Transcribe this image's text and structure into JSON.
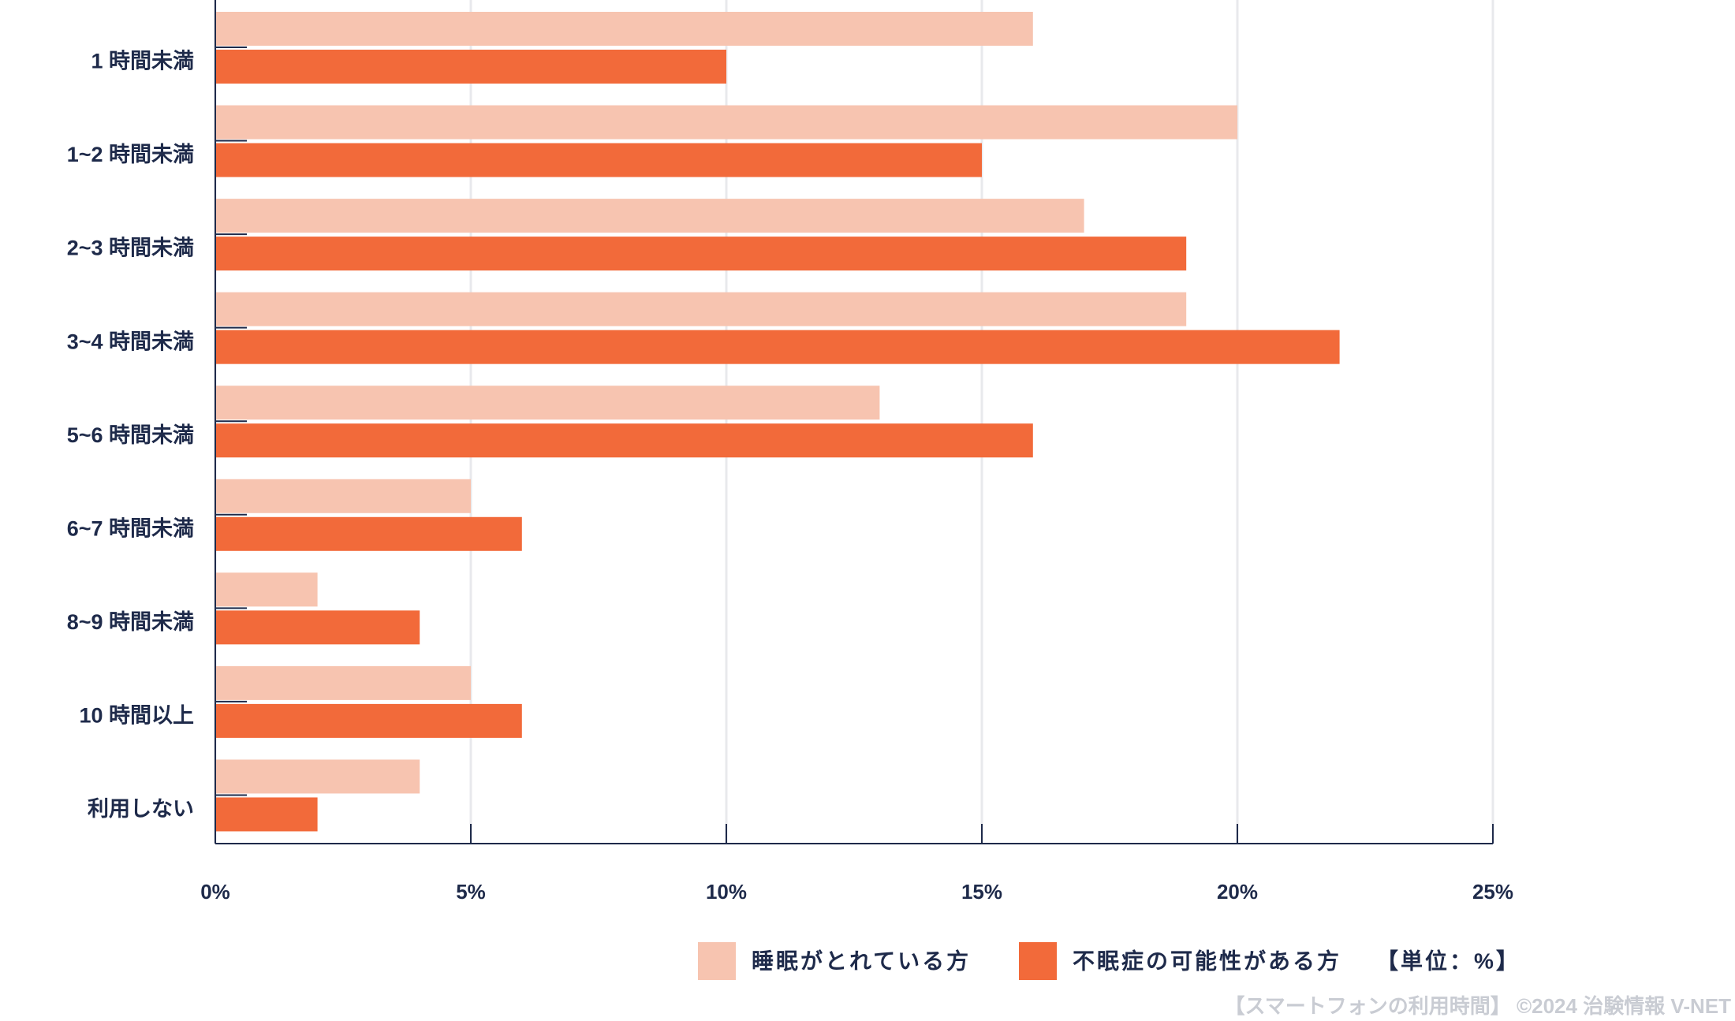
{
  "chart_data": {
    "type": "bar",
    "orientation": "horizontal",
    "categories": [
      "1 時間未満",
      "1~2 時間未満",
      "2~3 時間未満",
      "3~4 時間未満",
      "5~6 時間未満",
      "6~7 時間未満",
      "8~9 時間未満",
      "10 時間以上",
      "利用しない"
    ],
    "series": [
      {
        "name": "睡眠がとれている方",
        "color": "#f7c4b0",
        "values": [
          16,
          20,
          17,
          19,
          13,
          5,
          2,
          5,
          4
        ]
      },
      {
        "name": "不眠症の可能性がある方",
        "color": "#f26a3a",
        "values": [
          10,
          15,
          19,
          22,
          16,
          6,
          4,
          6,
          2
        ]
      }
    ],
    "xlim": [
      0,
      25
    ],
    "xticks": [
      {
        "value": 0,
        "label": "0%"
      },
      {
        "value": 5,
        "label": "5%"
      },
      {
        "value": 10,
        "label": "10%"
      },
      {
        "value": 15,
        "label": "15%"
      },
      {
        "value": 20,
        "label": "20%"
      },
      {
        "value": 25,
        "label": "25%"
      }
    ],
    "grid": true,
    "unit_note": "【単位：%】",
    "source": "【スマートフォンの利用時間】 ©2024 治験情報 V-NET"
  }
}
